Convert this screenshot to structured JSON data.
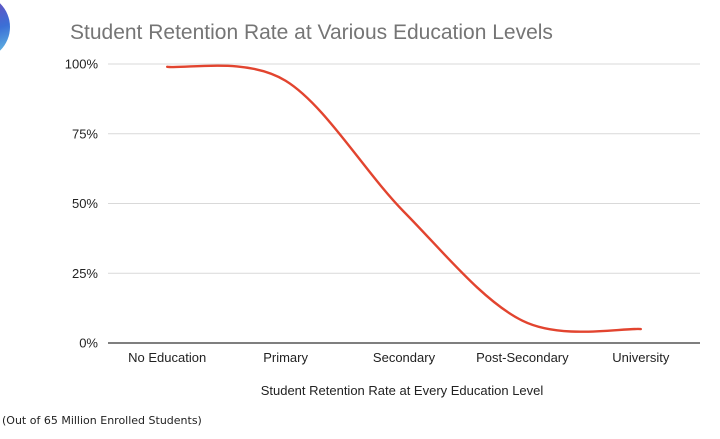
{
  "chart_data": {
    "type": "line",
    "title": "Student Retention Rate at Various Education Levels",
    "xlabel": "Student Retention Rate at Every Education Level",
    "ylabel": "",
    "categories": [
      "No Education",
      "Primary",
      "Secondary",
      "Post-Secondary",
      "University"
    ],
    "series": [
      {
        "values": [
          99,
          94,
          47,
          8,
          5
        ]
      }
    ],
    "ylim": [
      0,
      100
    ],
    "yticks": [
      0,
      25,
      50,
      75,
      100
    ],
    "ytick_labels": [
      "0%",
      "25%",
      "50%",
      "75%",
      "100%"
    ],
    "grid": true,
    "legend": "none",
    "colors": {
      "line": "#e2442f",
      "grid": "#d9d9d9",
      "axis": "#333333",
      "title": "#757575"
    }
  },
  "footnote": "(Out of 65 Million Enrolled Students)",
  "logo": {
    "icon": "logo-icon"
  }
}
